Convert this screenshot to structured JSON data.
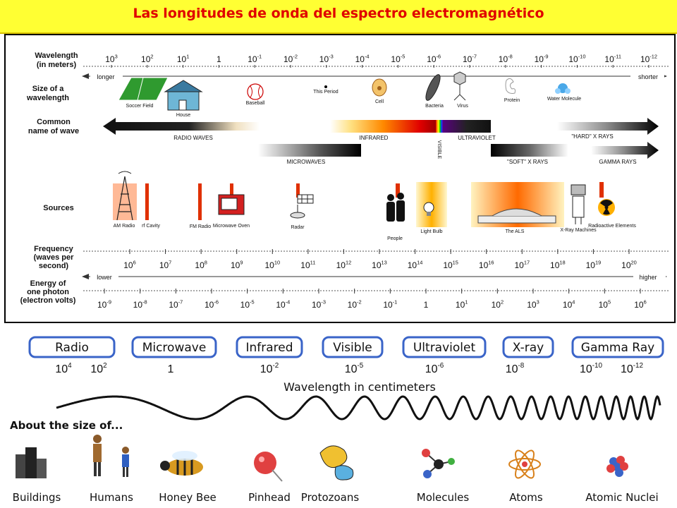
{
  "title": "Las longitudes de onda del espectro electromagnético",
  "colors": {
    "title_bg": "#ffff33",
    "title_text": "#e00000",
    "pill_border": "#3a64c8"
  },
  "top": {
    "row_labels": {
      "wavelength": [
        "Wavelength",
        "(in meters)"
      ],
      "size": [
        "Size of a",
        "wavelength"
      ],
      "common": [
        "Common",
        "name of wave"
      ],
      "sources": [
        "Sources"
      ],
      "frequency": [
        "Frequency",
        "(waves per",
        "second)"
      ],
      "energy": [
        "Energy of",
        "one photon",
        "(electron volts)"
      ]
    },
    "wavelength_ticks": [
      {
        "b": "10",
        "e": "3"
      },
      {
        "b": "10",
        "e": "2"
      },
      {
        "b": "10",
        "e": "1"
      },
      {
        "b": "1",
        "e": ""
      },
      {
        "b": "10",
        "e": "-1"
      },
      {
        "b": "10",
        "e": "-2"
      },
      {
        "b": "10",
        "e": "-3"
      },
      {
        "b": "10",
        "e": "-4"
      },
      {
        "b": "10",
        "e": "-5"
      },
      {
        "b": "10",
        "e": "-6"
      },
      {
        "b": "10",
        "e": "-7"
      },
      {
        "b": "10",
        "e": "-8"
      },
      {
        "b": "10",
        "e": "-9"
      },
      {
        "b": "10",
        "e": "-10"
      },
      {
        "b": "10",
        "e": "-11"
      },
      {
        "b": "10",
        "e": "-12"
      }
    ],
    "longer": "longer",
    "shorter": "shorter",
    "size_items": [
      "Soccer Field",
      "House",
      "Baseball",
      "This Period",
      "Cell",
      "Bacteria",
      "Virus",
      "Protein",
      "Water Molecule"
    ],
    "wave_names": {
      "radio": "RADIO WAVES",
      "infrared": "INFRARED",
      "visible": "VISIBLE",
      "ultraviolet": "ULTRAVIOLET",
      "hard_xrays": "\"HARD\" X RAYS",
      "microwaves": "MICROWAVES",
      "soft_xrays": "\"SOFT\" X RAYS",
      "gamma": "GAMMA RAYS"
    },
    "sources": [
      "AM Radio",
      "rf Cavity",
      "FM Radio",
      "Microwave Oven",
      "Radar",
      "People",
      "Light Bulb",
      "The ALS",
      "X-Ray Machines",
      "Radioactive Elements"
    ],
    "frequency_ticks": [
      {
        "b": "10",
        "e": "6"
      },
      {
        "b": "10",
        "e": "7"
      },
      {
        "b": "10",
        "e": "8"
      },
      {
        "b": "10",
        "e": "9"
      },
      {
        "b": "10",
        "e": "10"
      },
      {
        "b": "10",
        "e": "11"
      },
      {
        "b": "10",
        "e": "12"
      },
      {
        "b": "10",
        "e": "13"
      },
      {
        "b": "10",
        "e": "14"
      },
      {
        "b": "10",
        "e": "15"
      },
      {
        "b": "10",
        "e": "16"
      },
      {
        "b": "10",
        "e": "17"
      },
      {
        "b": "10",
        "e": "18"
      },
      {
        "b": "10",
        "e": "19"
      },
      {
        "b": "10",
        "e": "20"
      }
    ],
    "lower": "lower",
    "higher": "higher",
    "energy_ticks": [
      {
        "b": "10",
        "e": "-9"
      },
      {
        "b": "10",
        "e": "-8"
      },
      {
        "b": "10",
        "e": "-7"
      },
      {
        "b": "10",
        "e": "-6"
      },
      {
        "b": "10",
        "e": "-5"
      },
      {
        "b": "10",
        "e": "-4"
      },
      {
        "b": "10",
        "e": "-3"
      },
      {
        "b": "10",
        "e": "-2"
      },
      {
        "b": "10",
        "e": "-1"
      },
      {
        "b": "1",
        "e": ""
      },
      {
        "b": "10",
        "e": "1"
      },
      {
        "b": "10",
        "e": "2"
      },
      {
        "b": "10",
        "e": "3"
      },
      {
        "b": "10",
        "e": "4"
      },
      {
        "b": "10",
        "e": "5"
      },
      {
        "b": "10",
        "e": "6"
      }
    ]
  },
  "bottom": {
    "bands": [
      "Radio",
      "Microwave",
      "Infrared",
      "Visible",
      "Ultraviolet",
      "X-ray",
      "Gamma Ray"
    ],
    "cm_values": [
      {
        "b": "10",
        "e": "4"
      },
      {
        "b": "10",
        "e": "2"
      },
      {
        "b": "1",
        "e": ""
      },
      {
        "b": "10",
        "e": "-2"
      },
      {
        "b": "10",
        "e": "-5"
      },
      {
        "b": "10",
        "e": "-6"
      },
      {
        "b": "10",
        "e": "-8"
      },
      {
        "b": "10",
        "e": "-10"
      },
      {
        "b": "10",
        "e": "-12"
      }
    ],
    "caption": "Wavelength in centimeters",
    "about": "About the size of...",
    "objects": [
      "Buildings",
      "Humans",
      "Honey Bee",
      "Pinhead",
      "Protozoans",
      "Molecules",
      "Atoms",
      "Atomic Nuclei"
    ]
  }
}
